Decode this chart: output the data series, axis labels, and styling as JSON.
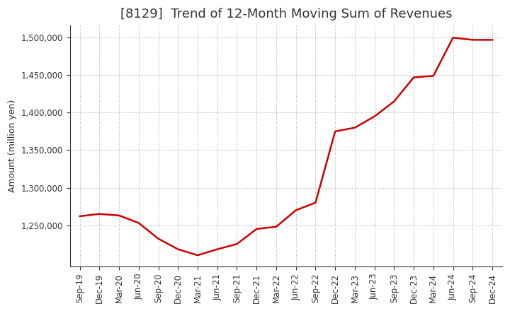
{
  "title": "[8129]  Trend of 12-Month Moving Sum of Revenues",
  "ylabel": "Amount (million yen)",
  "background_color": "#ffffff",
  "plot_background_color": "#ffffff",
  "line_color": "#cc0000",
  "line_width": 1.8,
  "grid_color": "#999999",
  "x_labels": [
    "Sep-19",
    "Dec-19",
    "Mar-20",
    "Jun-20",
    "Sep-20",
    "Dec-20",
    "Mar-21",
    "Jun-21",
    "Sep-21",
    "Dec-21",
    "Mar-22",
    "Jun-22",
    "Sep-22",
    "Dec-22",
    "Mar-23",
    "Jun-23",
    "Sep-23",
    "Dec-23",
    "Mar-24",
    "Jun-24",
    "Sep-24",
    "Dec-24"
  ],
  "values": [
    1262000,
    1265000,
    1263000,
    1253000,
    1232000,
    1218000,
    1210000,
    1218000,
    1225000,
    1245000,
    1248000,
    1270000,
    1280000,
    1375000,
    1380000,
    1395000,
    1415000,
    1447000,
    1449000,
    1500000,
    1497000,
    1497000
  ],
  "ylim_min": 1195000,
  "ylim_max": 1516000,
  "yticks": [
    1250000,
    1300000,
    1350000,
    1400000,
    1450000,
    1500000
  ],
  "title_fontsize": 13,
  "label_fontsize": 9,
  "tick_fontsize": 8.5
}
